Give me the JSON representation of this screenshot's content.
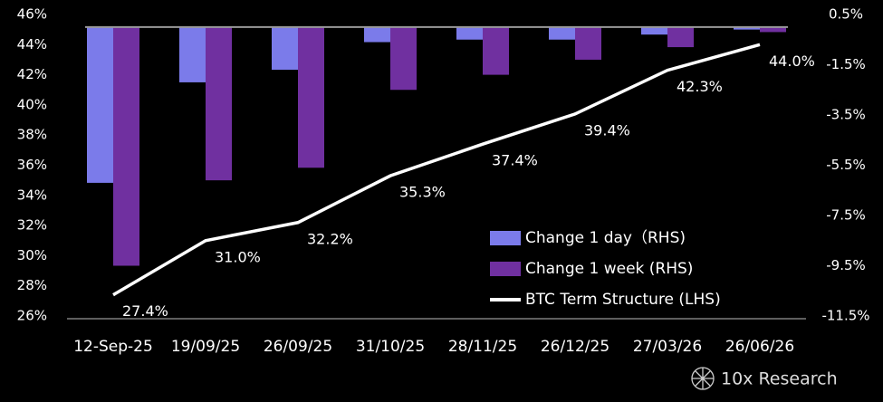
{
  "chart_data": {
    "type": "bar-line",
    "categories": [
      "12-Sep-25",
      "19/09/25",
      "26/09/25",
      "31/10/25",
      "28/11/25",
      "26/12/25",
      "27/03/26",
      "26/06/26"
    ],
    "series": [
      {
        "name": "Change 1 day（RHS)",
        "type": "bar",
        "axis": "y2",
        "color": "#7b7bea",
        "values": [
          -6.2,
          -2.2,
          -1.7,
          -0.6,
          -0.5,
          -0.5,
          -0.3,
          -0.1
        ]
      },
      {
        "name": "Change 1 week (RHS)",
        "type": "bar",
        "axis": "y2",
        "color": "#7030a0",
        "values": [
          -9.5,
          -6.1,
          -5.6,
          -2.5,
          -1.9,
          -1.3,
          -0.8,
          -0.2
        ]
      },
      {
        "name": "BTC Term Structure (LHS)",
        "type": "line",
        "axis": "y",
        "color": "#ffffff",
        "values": [
          27.4,
          31.0,
          32.2,
          35.3,
          37.4,
          39.4,
          42.3,
          44.0
        ],
        "value_labels": [
          "27.4%",
          "31.0%",
          "32.2%",
          "35.3%",
          "37.4%",
          "39.4%",
          "42.3%",
          "44.0%"
        ]
      }
    ],
    "ylim": [
      26,
      46
    ],
    "yticks": [
      {
        "value": 26,
        "label": "26%"
      },
      {
        "value": 28,
        "label": "28%"
      },
      {
        "value": 30,
        "label": "30%"
      },
      {
        "value": 32,
        "label": "32%"
      },
      {
        "value": 34,
        "label": "34%"
      },
      {
        "value": 36,
        "label": "36%"
      },
      {
        "value": 38,
        "label": "38%"
      },
      {
        "value": 40,
        "label": "40%"
      },
      {
        "value": 42,
        "label": "42%"
      },
      {
        "value": 44,
        "label": "44%"
      },
      {
        "value": 46,
        "label": "46%"
      }
    ],
    "y2lim": [
      -11.5,
      0.5
    ],
    "y2ticks": [
      {
        "value": 0.5,
        "label": "0.5%"
      },
      {
        "value": -1.5,
        "label": "-1.5%"
      },
      {
        "value": -3.5,
        "label": "-3.5%"
      },
      {
        "value": -5.5,
        "label": "-5.5%"
      },
      {
        "value": -7.5,
        "label": "-7.5%"
      },
      {
        "value": -9.5,
        "label": "-9.5%"
      },
      {
        "value": -11.5,
        "label": "-11.5%"
      }
    ],
    "legend": "lower right"
  },
  "brand": "10x Research"
}
